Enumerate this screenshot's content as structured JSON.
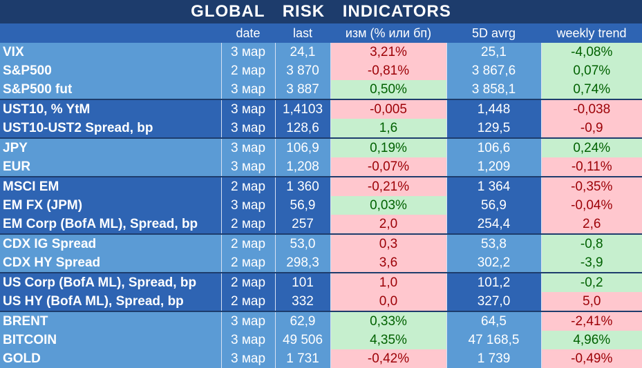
{
  "title": "GLOBAL   RISK   INDICATORS",
  "columns": [
    "",
    "date",
    "last",
    "изм (% или бп)",
    "5D avrg",
    "weekly trend"
  ],
  "rows": [
    {
      "name": "VIX",
      "date": "3 мар",
      "last": "24,1",
      "chg": "3,21%",
      "chg_dir": "neg",
      "avg": "25,1",
      "wk": "-4,08%",
      "wk_dir": "pos",
      "group": "gA",
      "gstart": true
    },
    {
      "name": "S&P500",
      "date": "2 мар",
      "last": "3 870",
      "chg": "-0,81%",
      "chg_dir": "neg",
      "avg": "3 867,6",
      "wk": "0,07%",
      "wk_dir": "pos",
      "group": "gA",
      "gstart": false
    },
    {
      "name": "S&P500 fut",
      "date": "3 мар",
      "last": "3 887",
      "chg": "0,50%",
      "chg_dir": "pos",
      "avg": "3 858,1",
      "wk": "0,74%",
      "wk_dir": "pos",
      "group": "gA",
      "gstart": false
    },
    {
      "name": "UST10, % YtM",
      "date": "3 мар",
      "last": "1,4103",
      "chg": "-0,005",
      "chg_dir": "neg",
      "avg": "1,448",
      "wk": "-0,038",
      "wk_dir": "neg",
      "group": "gB",
      "gstart": true
    },
    {
      "name": "UST10-UST2 Spread, bp",
      "date": "3 мар",
      "last": "128,6",
      "chg": "1,6",
      "chg_dir": "pos",
      "avg": "129,5",
      "wk": "-0,9",
      "wk_dir": "neg",
      "group": "gB",
      "gstart": false
    },
    {
      "name": "JPY",
      "date": "3 мар",
      "last": "106,9",
      "chg": "0,19%",
      "chg_dir": "pos",
      "avg": "106,6",
      "wk": "0,24%",
      "wk_dir": "pos",
      "group": "gA",
      "gstart": true
    },
    {
      "name": "EUR",
      "date": "3 мар",
      "last": "1,208",
      "chg": "-0,07%",
      "chg_dir": "neg",
      "avg": "1,209",
      "wk": "-0,11%",
      "wk_dir": "neg",
      "group": "gA",
      "gstart": false
    },
    {
      "name": "MSCI EM",
      "date": "2 мар",
      "last": "1 360",
      "chg": "-0,21%",
      "chg_dir": "neg",
      "avg": "1 364",
      "wk": "-0,35%",
      "wk_dir": "neg",
      "group": "gB",
      "gstart": true
    },
    {
      "name": "EM FX (JPM)",
      "date": "3 мар",
      "last": "56,9",
      "chg": "0,03%",
      "chg_dir": "pos",
      "avg": "56,9",
      "wk": "-0,04%",
      "wk_dir": "neg",
      "group": "gB",
      "gstart": false
    },
    {
      "name": "EM Corp (BofA ML), Spread, bp",
      "date": "2 мар",
      "last": "257",
      "chg": "2,0",
      "chg_dir": "neg",
      "avg": "254,4",
      "wk": "2,6",
      "wk_dir": "neg",
      "group": "gB",
      "gstart": false
    },
    {
      "name": "CDX IG Spread",
      "date": "2 мар",
      "last": "53,0",
      "chg": "0,3",
      "chg_dir": "neg",
      "avg": "53,8",
      "wk": "-0,8",
      "wk_dir": "pos",
      "group": "gA",
      "gstart": true
    },
    {
      "name": "CDX HY Spread",
      "date": "2 мар",
      "last": "298,3",
      "chg": "3,6",
      "chg_dir": "neg",
      "avg": "302,2",
      "wk": "-3,9",
      "wk_dir": "pos",
      "group": "gA",
      "gstart": false
    },
    {
      "name": "US Corp (BofA ML), Spread, bp",
      "date": "2 мар",
      "last": "101",
      "chg": "1,0",
      "chg_dir": "neg",
      "avg": "101,2",
      "wk": "-0,2",
      "wk_dir": "pos",
      "group": "gB",
      "gstart": true
    },
    {
      "name": "US HY (BofA ML), Spread, bp",
      "date": "2 мар",
      "last": "332",
      "chg": "0,0",
      "chg_dir": "neg",
      "avg": "327,0",
      "wk": "5,0",
      "wk_dir": "neg",
      "group": "gB",
      "gstart": false
    },
    {
      "name": "BRENT",
      "date": "3 мар",
      "last": "62,9",
      "chg": "0,33%",
      "chg_dir": "pos",
      "avg": "64,5",
      "wk": "-2,41%",
      "wk_dir": "neg",
      "group": "gA",
      "gstart": true
    },
    {
      "name": "BITCOIN",
      "date": "3 мар",
      "last": "49 506",
      "chg": "4,35%",
      "chg_dir": "pos",
      "avg": "47 168,5",
      "wk": "4,96%",
      "wk_dir": "pos",
      "group": "gA",
      "gstart": false
    },
    {
      "name": "GOLD",
      "date": "3 мар",
      "last": "1 731",
      "chg": "-0,42%",
      "chg_dir": "neg",
      "avg": "1 739",
      "wk": "-0,49%",
      "wk_dir": "neg",
      "group": "gA",
      "gstart": false
    }
  ],
  "colors": {
    "header_bg": "#1d3c6c",
    "group_light": "#5b9bd5",
    "group_dark": "#2e64b3",
    "positive_bg": "#c6efce",
    "positive_text": "#006100",
    "negative_bg": "#ffc7ce",
    "negative_text": "#9c0006"
  }
}
